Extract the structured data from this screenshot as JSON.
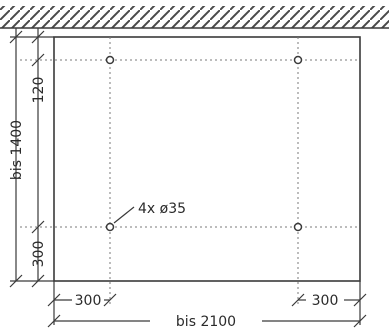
{
  "drawing": {
    "hole_note": "4x ø35",
    "dimensions": {
      "total_height": "bis 1400",
      "top_offset": "120",
      "bottom_offset": "300",
      "total_width": "bis 2100",
      "left_offset": "300",
      "right_offset": "300"
    },
    "colors": {
      "line": "#3a3a3a",
      "hatch": "#4a4a4a",
      "guide": "#7a7a7a"
    }
  }
}
